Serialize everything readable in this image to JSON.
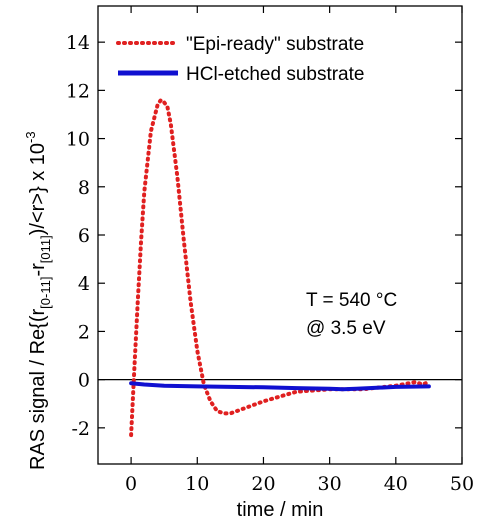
{
  "chart_data": {
    "type": "line",
    "xlabel": "time / min",
    "ylabel": {
      "prefix": "RAS signal  / Re{(r",
      "sub1": "[0-11]",
      "mid": "-r",
      "sub2": "[011]",
      "suffix": ")/<r>} x 10",
      "sup": "-3"
    },
    "xlim": [
      -5,
      50
    ],
    "ylim": [
      -3.5,
      15.5
    ],
    "xticks": [
      "0",
      "10",
      "20",
      "30",
      "40",
      "50"
    ],
    "yticks": [
      "-2",
      "0",
      "2",
      "4",
      "6",
      "8",
      "10",
      "12",
      "14"
    ],
    "grid": false,
    "legend_position": "top-right",
    "zero_line": true,
    "annotations": [
      "T = 540 °C",
      "@ 3.5 eV"
    ],
    "series": [
      {
        "name": "\"Epi-ready\" substrate",
        "color": "#e02020",
        "style": "dotted",
        "x": [
          0,
          0.5,
          1,
          1.5,
          2,
          3,
          4,
          4.5,
          5,
          5.5,
          6,
          7,
          8,
          9,
          10,
          11,
          12,
          13,
          14,
          15,
          17,
          20,
          25,
          30,
          35,
          40,
          43,
          44,
          45
        ],
        "y": [
          -2.3,
          0.5,
          3.2,
          5.7,
          7.8,
          10.3,
          11.4,
          11.6,
          11.5,
          11.3,
          10.6,
          8.4,
          5.7,
          3.2,
          1.2,
          -0.2,
          -0.9,
          -1.3,
          -1.4,
          -1.4,
          -1.2,
          -0.9,
          -0.5,
          -0.4,
          -0.4,
          -0.25,
          -0.1,
          -0.2,
          -0.1
        ]
      },
      {
        "name": "HCl-etched substrate",
        "color": "#1010d0",
        "style": "solid",
        "x": [
          0,
          2,
          5,
          10,
          15,
          20,
          25,
          30,
          32,
          34,
          36,
          40,
          45
        ],
        "y": [
          -0.15,
          -0.2,
          -0.25,
          -0.28,
          -0.3,
          -0.32,
          -0.35,
          -0.38,
          -0.4,
          -0.38,
          -0.35,
          -0.3,
          -0.28
        ]
      }
    ]
  }
}
